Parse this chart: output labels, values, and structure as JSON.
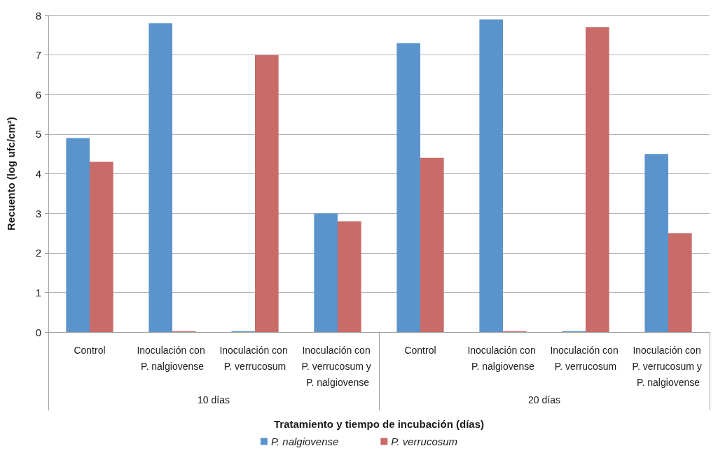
{
  "chart_data": {
    "type": "bar",
    "categories": [
      "Control",
      "Inoculación con P. nalgiovense",
      "Inoculación con P. verrucosum",
      "Inoculación con P. verrucosum y P. nalgiovense",
      "Control",
      "Inoculación con P. nalgiovense",
      "Inoculación con P. verrucosum",
      "Inoculación con P. verrucosum y P. nalgiovense"
    ],
    "series": [
      {
        "name": "P. nalgiovense",
        "color": "#5b94cc",
        "values": [
          4.9,
          7.8,
          0.02,
          3.0,
          7.3,
          7.9,
          0.02,
          4.5
        ]
      },
      {
        "name": "P. verrucosum",
        "color": "#c96b68",
        "values": [
          4.3,
          0.02,
          7.0,
          2.8,
          4.4,
          0.02,
          7.7,
          2.5
        ]
      }
    ],
    "annotations": [
      "10 días",
      "20 días"
    ],
    "xlabel": "Tratamiento y tiempo de incubación (días)",
    "ylabel": "Recuento (log ufc/cm²)",
    "ylim": [
      0,
      8
    ],
    "yticks": [
      0,
      1,
      2,
      3,
      4,
      5,
      6,
      7,
      8
    ],
    "grid": "y",
    "legend": "bottom"
  }
}
